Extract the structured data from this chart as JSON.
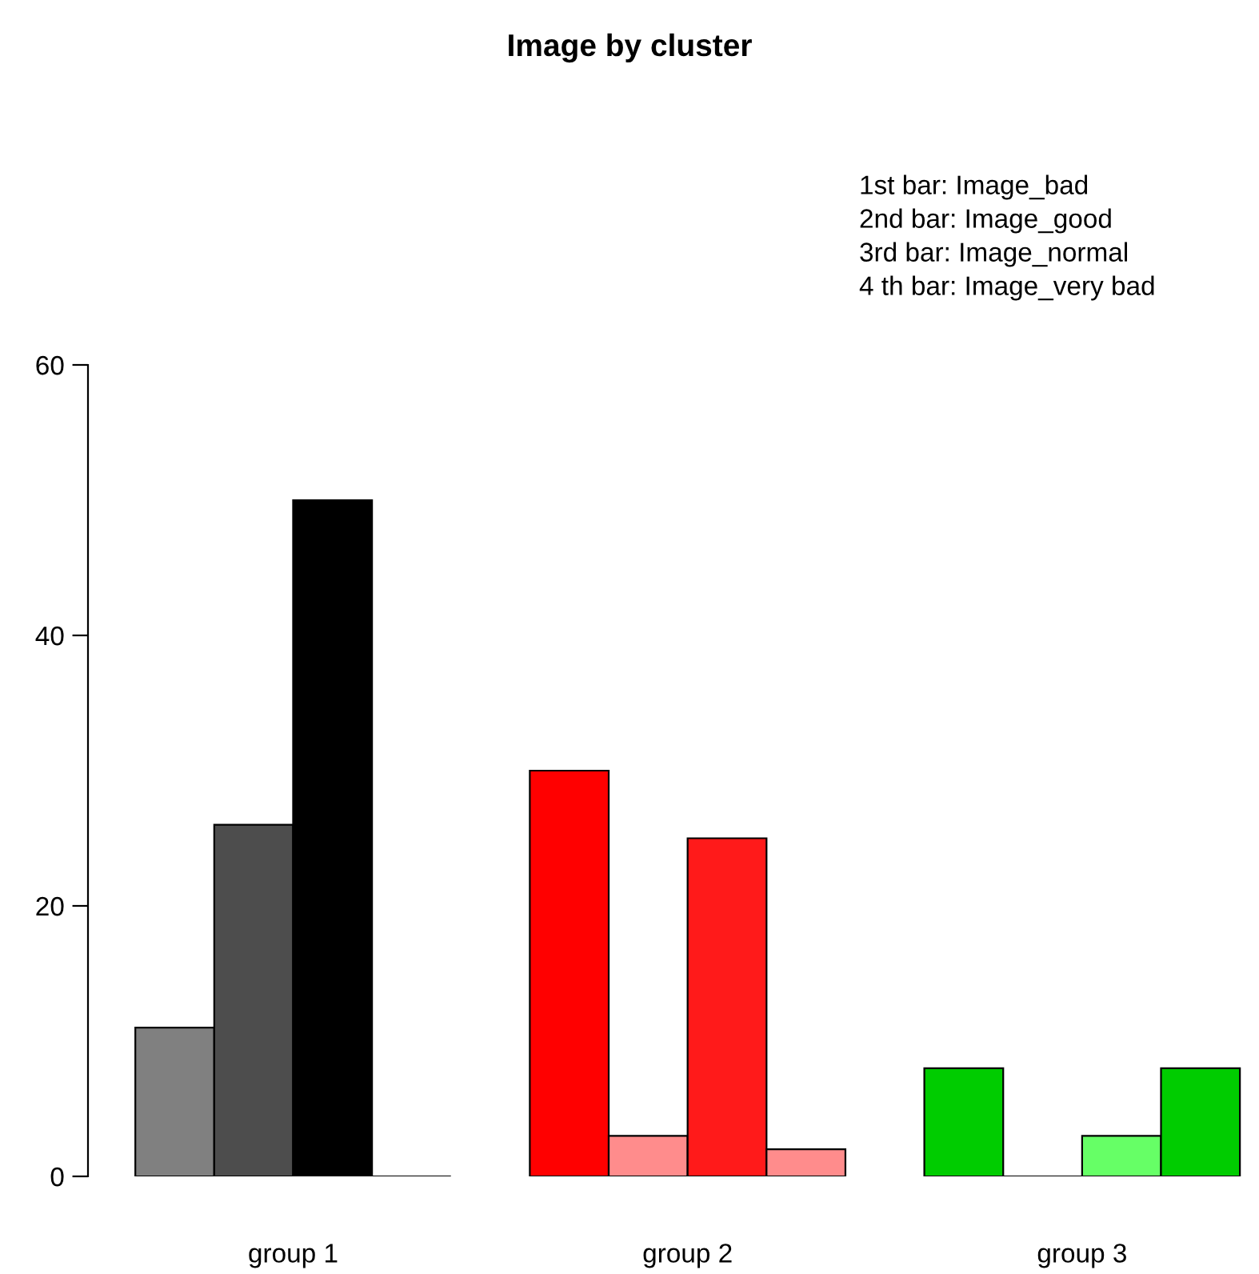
{
  "chart_data": {
    "type": "bar",
    "title": "Image by cluster",
    "categories": [
      "group 1",
      "group 2",
      "group 3"
    ],
    "series": [
      {
        "colors": [
          "#808080",
          "#ff0000",
          "#00cc00"
        ],
        "values": [
          11,
          30,
          8
        ]
      },
      {
        "colors": [
          "#4d4d4d",
          "#ff8c8c",
          "#000000"
        ],
        "values": [
          26,
          3,
          0
        ]
      },
      {
        "colors": [
          "#000000",
          "#ff1a1a",
          "#66ff66"
        ],
        "values": [
          50,
          25,
          3
        ]
      },
      {
        "colors": [
          "#000000",
          "#ff8c8c",
          "#00cc00"
        ],
        "values": [
          0,
          2,
          8
        ]
      }
    ],
    "ylim": [
      0,
      60
    ],
    "yticks": [
      0,
      20,
      40,
      60
    ],
    "grid": false,
    "legend": false,
    "annotations": [
      "1st bar: Image_bad",
      "2nd bar: Image_good",
      "3rd bar: Image_normal",
      "4 th bar: Image_very bad"
    ]
  }
}
